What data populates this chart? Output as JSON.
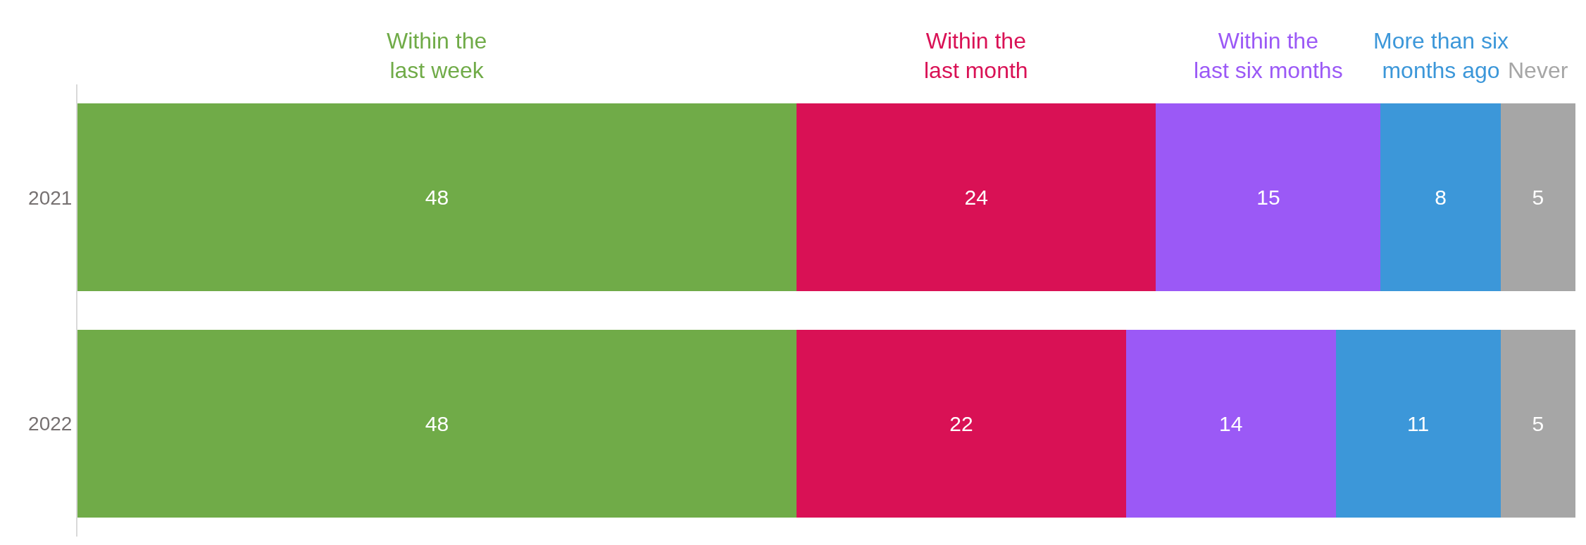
{
  "chart_data": {
    "type": "bar",
    "orientation": "horizontal",
    "stacked": true,
    "data_labels": true,
    "legend": false,
    "grid": false,
    "categories": [
      "2021",
      "2022"
    ],
    "series": [
      {
        "name": "Within the last week",
        "color": "#70ab48",
        "values": [
          48,
          48
        ]
      },
      {
        "name": "Within the last month",
        "color": "#d91155",
        "values": [
          24,
          22
        ]
      },
      {
        "name": "Within the last six months",
        "color": "#9b59f6",
        "values": [
          15,
          14
        ]
      },
      {
        "name": "More than six months ago",
        "color": "#3c97d9",
        "values": [
          8,
          11
        ]
      },
      {
        "name": "Never",
        "color": "#a6a6a6",
        "values": [
          5,
          5
        ]
      }
    ]
  }
}
